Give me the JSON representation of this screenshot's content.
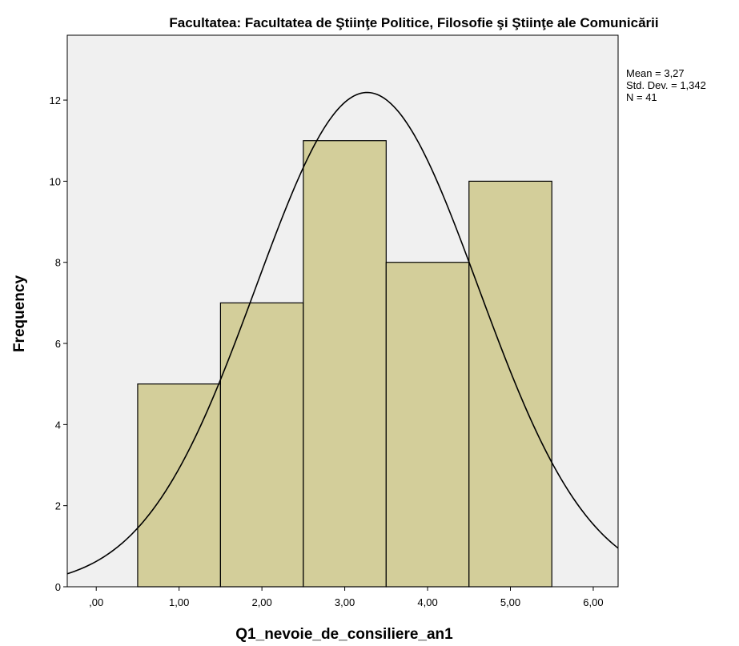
{
  "chart_data": {
    "type": "bar",
    "subtype": "histogram-with-normal-curve",
    "title": "Facultatea: Facultatea de Ştiinţe Politice, Filosofie şi Ştiinţe ale Comunicării",
    "xlabel": "Q1_nevoie_de_consiliere_an1",
    "ylabel": "Frequency",
    "bins": [
      {
        "center": 1,
        "value": 5
      },
      {
        "center": 2,
        "value": 7
      },
      {
        "center": 3,
        "value": 11
      },
      {
        "center": 4,
        "value": 8
      },
      {
        "center": 5,
        "value": 10
      }
    ],
    "bin_width": 1,
    "xlim": [
      -0.35,
      6.3
    ],
    "ylim": [
      0,
      13.6
    ],
    "x_ticks": [
      0,
      1,
      2,
      3,
      4,
      5,
      6
    ],
    "x_tick_labels": [
      ",00",
      "1,00",
      "2,00",
      "3,00",
      "4,00",
      "5,00",
      "6,00"
    ],
    "y_ticks": [
      0,
      2,
      4,
      6,
      8,
      10,
      12
    ],
    "y_tick_labels": [
      "0",
      "2",
      "4",
      "6",
      "8",
      "10",
      "12"
    ],
    "normal_curve": {
      "mean": 3.27,
      "sd": 1.342,
      "n": 41
    },
    "stats": {
      "mean": "Mean = 3,27",
      "sd": "Std. Dev. = 1,342",
      "n": "N = 41"
    },
    "grid": false,
    "legend": "none",
    "colors": {
      "bar_fill": "#d3ce9a",
      "bar_stroke": "#000000",
      "plot_background": "#f0f0f0",
      "curve": "#000000"
    }
  }
}
